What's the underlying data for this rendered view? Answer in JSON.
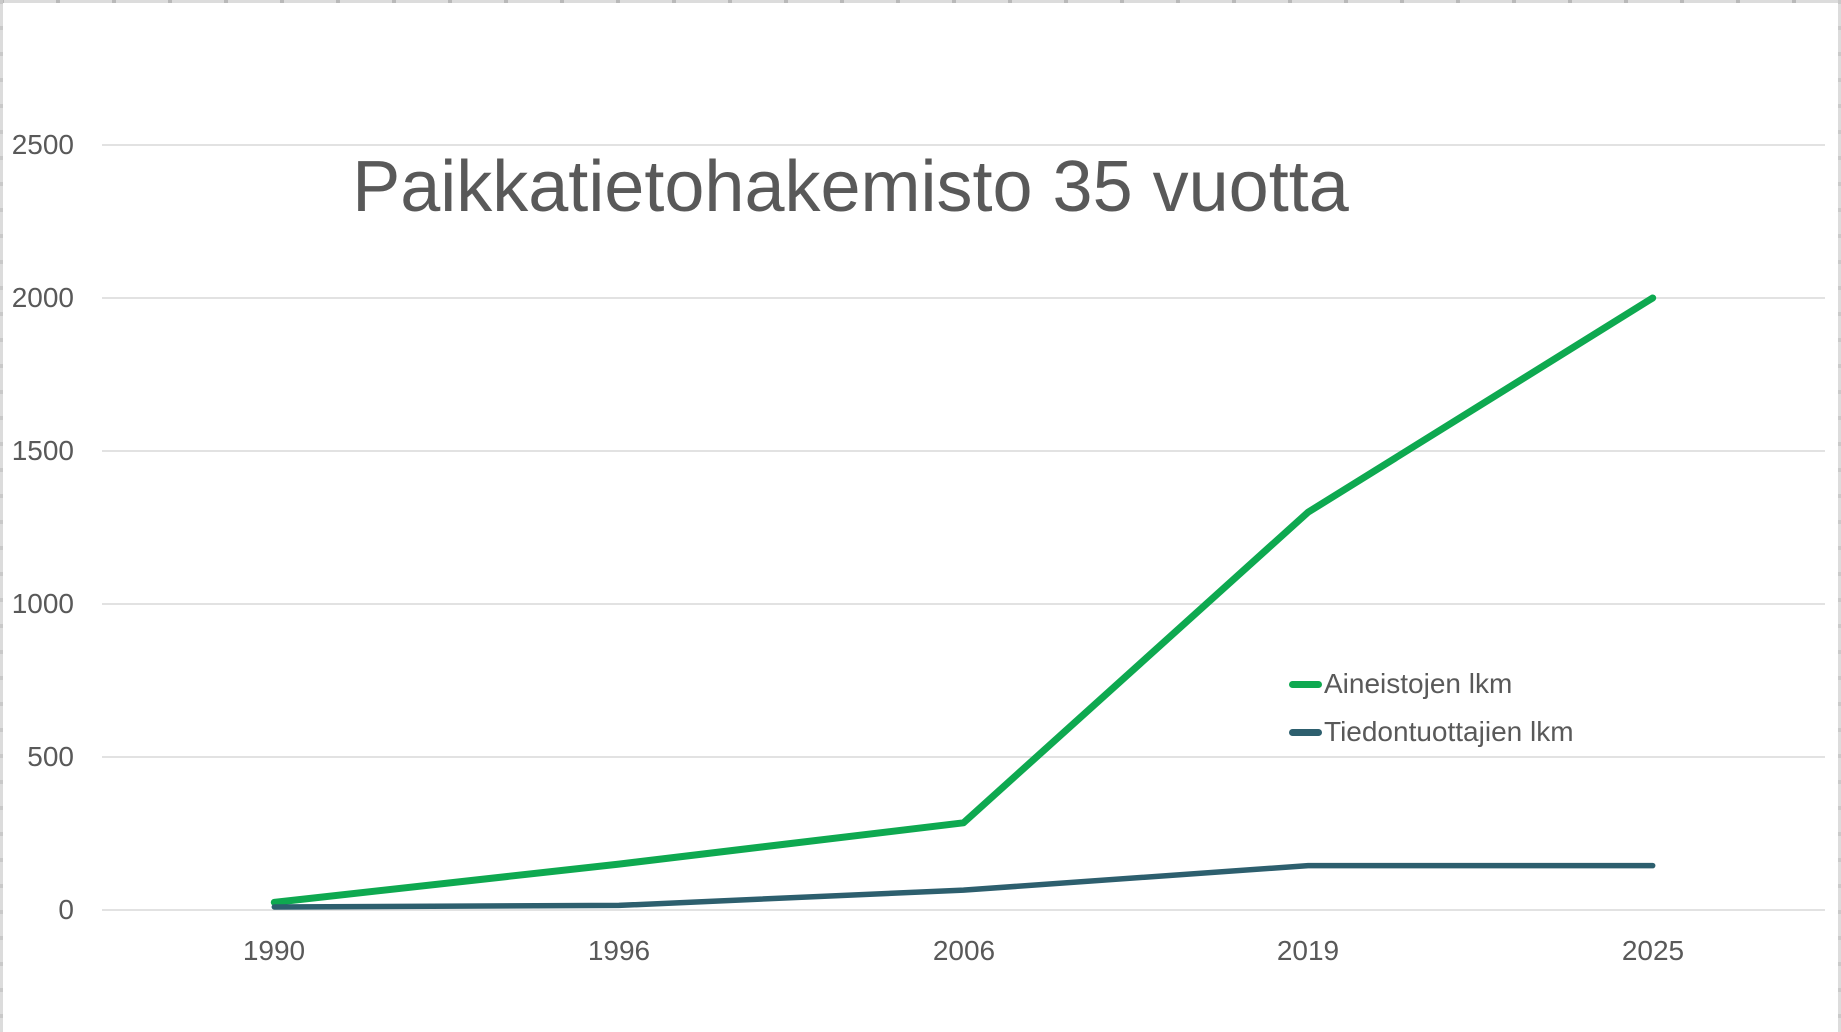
{
  "page": {
    "background": "#ffffff"
  },
  "chart_data": {
    "type": "line",
    "title": "Paikkatietohakemisto 35 vuotta",
    "categories": [
      "1990",
      "1996",
      "2006",
      "2019",
      "2025"
    ],
    "series": [
      {
        "name": "Aineistojen lkm",
        "color": "#0EA950",
        "stroke_width": 7,
        "values": [
          25,
          150,
          285,
          1300,
          2000
        ]
      },
      {
        "name": "Tiedontuottajien lkm",
        "color": "#2D5F6E",
        "stroke_width": 5.5,
        "values": [
          10,
          15,
          65,
          145,
          145
        ]
      }
    ],
    "y_ticks": [
      0,
      500,
      1000,
      1500,
      2000,
      2500
    ],
    "ylim": [
      0,
      2500
    ],
    "grid": true,
    "legend_position": "center-right",
    "xlabel": "",
    "ylabel": "",
    "text_color": "#595959",
    "gridline_color": "#D9D9D9"
  }
}
